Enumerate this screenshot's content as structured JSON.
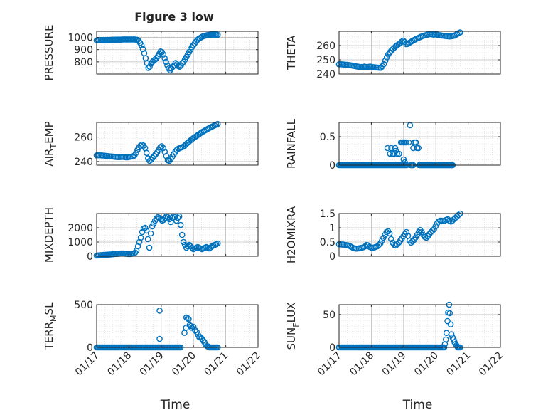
{
  "figure": {
    "title": "Figure 3 low"
  },
  "colors": {
    "marker": "#0072BD",
    "axis": "#262626",
    "grid": "#d0d0d0",
    "background": "#ffffff"
  },
  "chart_data": [
    {
      "type": "scatter",
      "title": "Figure 3 low",
      "ylabel": "PRESSURE",
      "xlabel": "",
      "xlim": [
        0,
        5
      ],
      "ylim": [
        700,
        1050
      ],
      "yticks": [
        800,
        900,
        1000
      ],
      "ytick_labels": [
        "800",
        "900",
        "1000"
      ],
      "xtick_labels": [
        "01/17",
        "01/18",
        "01/19",
        "01/20",
        "01/21",
        "01/22"
      ],
      "grid": true,
      "minor_grid": true,
      "y": [
        975,
        977,
        978,
        978,
        978,
        979,
        979,
        979,
        980,
        980,
        980,
        981,
        981,
        981,
        981,
        982,
        982,
        982,
        982,
        983,
        983,
        983,
        983,
        983,
        983,
        983,
        983,
        983,
        983,
        982,
        980,
        970,
        955,
        935,
        905,
        870,
        830,
        790,
        750,
        760,
        785,
        800,
        810,
        820,
        830,
        845,
        865,
        885,
        880,
        860,
        830,
        800,
        770,
        745,
        730,
        745,
        760,
        770,
        790,
        780,
        765,
        760,
        770,
        790,
        800,
        820,
        840,
        860,
        880,
        900,
        920,
        935,
        950,
        965,
        978,
        988,
        995,
        1002,
        1008,
        1012,
        1015,
        1018,
        1020,
        1021,
        1022,
        1023,
        1023,
        1023,
        1022,
        1021
      ]
    },
    {
      "type": "scatter",
      "ylabel": "THETA",
      "xlabel": "",
      "xlim": [
        0,
        5
      ],
      "ylim": [
        240,
        270
      ],
      "yticks": [
        240,
        250,
        260
      ],
      "ytick_labels": [
        "240",
        "250",
        "260"
      ],
      "xtick_labels": [
        "01/17",
        "01/18",
        "01/19",
        "01/20",
        "01/21",
        "01/22"
      ],
      "grid": true,
      "minor_grid": true,
      "y": [
        246.8,
        246.9,
        246.8,
        246.7,
        246.6,
        246.5,
        246.4,
        246.3,
        246.1,
        245.9,
        245.7,
        245.5,
        245.3,
        245.1,
        245.0,
        244.9,
        245.0,
        245.2,
        245.0,
        244.9,
        245.1,
        245.2,
        245.0,
        244.8,
        244.7,
        244.6,
        244.5,
        244.4,
        244.4,
        245.5,
        247.0,
        249.5,
        251.8,
        253.8,
        255.2,
        256.5,
        257.5,
        258.5,
        259.5,
        260.3,
        261.0,
        261.8,
        262.8,
        263.5,
        262.5,
        261.0,
        261.2,
        261.9,
        262.5,
        263.2,
        263.8,
        264.3,
        264.9,
        265.3,
        265.8,
        266.3,
        266.7,
        267.0,
        267.3,
        267.6,
        267.9,
        268.0,
        267.9,
        267.7,
        267.8,
        268.0,
        267.6,
        267.3,
        267.2,
        267.0,
        266.9,
        266.7,
        266.6,
        266.5,
        266.4,
        266.5,
        266.7,
        266.9,
        267.4,
        268.1,
        268.7,
        269.2
      ]
    },
    {
      "type": "scatter",
      "ylabel": "AIR_TEMP",
      "xlabel": "",
      "xlim": [
        0,
        5
      ],
      "ylim": [
        237,
        272
      ],
      "yticks": [
        240,
        260
      ],
      "ytick_labels": [
        "240",
        "260"
      ],
      "xtick_labels": [
        "01/17",
        "01/18",
        "01/19",
        "01/20",
        "01/21",
        "01/22"
      ],
      "grid": true,
      "minor_grid": true,
      "y": [
        245.0,
        245.1,
        245.1,
        245.0,
        244.9,
        244.8,
        244.6,
        244.5,
        244.3,
        244.2,
        244.1,
        244.0,
        243.8,
        243.7,
        243.6,
        243.6,
        243.7,
        243.8,
        243.7,
        243.5,
        243.4,
        243.6,
        243.8,
        244.0,
        244.2,
        245.0,
        247.0,
        249.5,
        251.5,
        253.0,
        253.8,
        253.0,
        251.0,
        247.0,
        242.5,
        240.5,
        241.5,
        243.0,
        244.5,
        246.0,
        247.5,
        249.5,
        251.5,
        252.5,
        251.0,
        248.0,
        244.5,
        241.0,
        240.5,
        242.0,
        244.0,
        246.0,
        248.0,
        249.5,
        250.5,
        251.0,
        251.5,
        252.0,
        252.8,
        254.0,
        255.2,
        256.2,
        257.3,
        258.3,
        259.2,
        260.1,
        260.9,
        261.8,
        262.6,
        263.5,
        264.3,
        265.0,
        265.7,
        266.4,
        267.1,
        267.8,
        268.4,
        269.0,
        269.6,
        270.2,
        270.7
      ]
    },
    {
      "type": "scatter",
      "ylabel": "RAINFALL",
      "xlabel": "",
      "xlim": [
        0,
        5
      ],
      "ylim": [
        0,
        0.75
      ],
      "yticks": [
        0,
        0.5
      ],
      "ytick_labels": [
        "0",
        "0.5"
      ],
      "xtick_labels": [
        "01/17",
        "01/18",
        "01/19",
        "01/20",
        "01/21",
        "01/22"
      ],
      "grid": true,
      "minor_grid": true,
      "points": [
        [
          1.5,
          0.3
        ],
        [
          1.58,
          0.2
        ],
        [
          1.62,
          0.3
        ],
        [
          1.66,
          0.2
        ],
        [
          1.7,
          0.2
        ],
        [
          1.74,
          0.3
        ],
        [
          1.76,
          0.25
        ],
        [
          1.8,
          0.2
        ],
        [
          1.86,
          0.2
        ],
        [
          1.92,
          0.4
        ],
        [
          1.96,
          0.4
        ],
        [
          2.0,
          0.4
        ],
        [
          2.04,
          0.4
        ],
        [
          2.08,
          0.4
        ],
        [
          2.0,
          0.1
        ],
        [
          2.04,
          0.05
        ],
        [
          2.16,
          0.4
        ],
        [
          2.2,
          0.7
        ],
        [
          2.3,
          0.3
        ],
        [
          2.34,
          0.4
        ],
        [
          2.38,
          0.4
        ],
        [
          2.42,
          0.3
        ],
        [
          2.46,
          0.3
        ]
      ],
      "zero_ranges": [
        [
          0.0,
          1.48,
          45
        ],
        [
          1.52,
          2.1,
          18
        ],
        [
          2.22,
          2.3,
          4
        ],
        [
          2.48,
          3.52,
          40
        ]
      ]
    },
    {
      "type": "scatter",
      "ylabel": "MIXDEPTH",
      "xlabel": "",
      "xlim": [
        0,
        5
      ],
      "ylim": [
        0,
        3000
      ],
      "yticks": [
        0,
        1000,
        2000
      ],
      "ytick_labels": [
        "0",
        "1000",
        "2000"
      ],
      "xtick_labels": [
        "01/17",
        "01/18",
        "01/19",
        "01/20",
        "01/21",
        "01/22"
      ],
      "grid": true,
      "minor_grid": true,
      "y": [
        50,
        60,
        70,
        80,
        90,
        95,
        100,
        110,
        115,
        120,
        130,
        140,
        150,
        160,
        165,
        170,
        180,
        190,
        200,
        200,
        180,
        170,
        160,
        150,
        160,
        180,
        200,
        260,
        400,
        700,
        1000,
        1300,
        1700,
        1950,
        2000,
        1800,
        1200,
        600,
        1600,
        2100,
        2300,
        2500,
        2650,
        2750,
        2700,
        2600,
        2500,
        2550,
        2700,
        2800,
        2750,
        2600,
        2400,
        2700,
        2800,
        2750,
        2500,
        2700,
        2800,
        2200,
        1500,
        1000,
        800,
        600,
        700,
        800,
        700,
        600,
        500,
        550,
        600,
        650,
        600,
        550,
        500,
        560,
        600,
        650,
        600,
        550,
        620,
        700,
        750,
        800,
        850,
        900
      ]
    },
    {
      "type": "scatter",
      "ylabel": "H2OMIXRA",
      "xlabel": "",
      "xlim": [
        0,
        5
      ],
      "ylim": [
        0,
        1.5
      ],
      "yticks": [
        0,
        0.5,
        1,
        1.5
      ],
      "ytick_labels": [
        "0",
        "0.5",
        "1",
        "1.5"
      ],
      "xtick_labels": [
        "01/17",
        "01/18",
        "01/19",
        "01/20",
        "01/21",
        "01/22"
      ],
      "grid": true,
      "minor_grid": true,
      "y": [
        0.42,
        0.42,
        0.41,
        0.41,
        0.4,
        0.39,
        0.38,
        0.36,
        0.33,
        0.3,
        0.28,
        0.27,
        0.27,
        0.28,
        0.29,
        0.3,
        0.32,
        0.35,
        0.4,
        0.38,
        0.33,
        0.3,
        0.3,
        0.31,
        0.33,
        0.35,
        0.4,
        0.45,
        0.55,
        0.65,
        0.75,
        0.85,
        0.88,
        0.8,
        0.6,
        0.48,
        0.4,
        0.38,
        0.42,
        0.48,
        0.55,
        0.62,
        0.7,
        0.78,
        0.85,
        0.72,
        0.55,
        0.48,
        0.52,
        0.58,
        0.66,
        0.75,
        0.85,
        0.92,
        0.85,
        0.75,
        0.68,
        0.65,
        0.7,
        0.78,
        0.85,
        0.9,
        0.95,
        1.05,
        1.15,
        1.22,
        1.25,
        1.25,
        1.24,
        1.25,
        1.28,
        1.3,
        1.25,
        1.22,
        1.25,
        1.3,
        1.35,
        1.4,
        1.45,
        1.5
      ]
    },
    {
      "type": "scatter",
      "ylabel": "TERR_MSL",
      "xlabel": "Time",
      "xlim": [
        0,
        5
      ],
      "ylim": [
        0,
        500
      ],
      "yticks": [
        0,
        500
      ],
      "ytick_labels": [
        "0",
        "500"
      ],
      "xtick_labels": [
        "01/17",
        "01/18",
        "01/19",
        "01/20",
        "01/21",
        "01/22"
      ],
      "grid": true,
      "minor_grid": true,
      "points": [
        [
          1.95,
          430
        ],
        [
          1.95,
          100
        ],
        [
          2.72,
          170
        ],
        [
          2.77,
          230
        ],
        [
          2.78,
          350
        ],
        [
          2.82,
          340
        ],
        [
          2.85,
          330
        ],
        [
          2.88,
          260
        ],
        [
          2.92,
          250
        ],
        [
          2.95,
          230
        ],
        [
          3.0,
          240
        ],
        [
          3.05,
          200
        ],
        [
          3.1,
          180
        ],
        [
          3.14,
          150
        ],
        [
          3.18,
          120
        ],
        [
          3.22,
          120
        ],
        [
          3.26,
          100
        ],
        [
          3.3,
          80
        ],
        [
          3.34,
          60
        ],
        [
          3.38,
          30
        ],
        [
          3.42,
          15
        ],
        [
          3.46,
          10
        ]
      ],
      "zero_ranges": [
        [
          0.0,
          2.6,
          70
        ],
        [
          3.48,
          3.75,
          8
        ]
      ]
    },
    {
      "type": "scatter",
      "ylabel": "SUN_FLUX",
      "xlabel": "Time",
      "xlim": [
        0,
        5
      ],
      "ylim": [
        0,
        65
      ],
      "yticks": [
        0,
        50
      ],
      "ytick_labels": [
        "0",
        "50"
      ],
      "xtick_labels": [
        "01/17",
        "01/18",
        "01/19",
        "01/20",
        "01/21",
        "01/22"
      ],
      "grid": true,
      "minor_grid": true,
      "points": [
        [
          3.28,
          5
        ],
        [
          3.31,
          12
        ],
        [
          3.33,
          22
        ],
        [
          3.36,
          40
        ],
        [
          3.38,
          53
        ],
        [
          3.41,
          65
        ],
        [
          3.43,
          52
        ],
        [
          3.46,
          35
        ],
        [
          3.48,
          20
        ],
        [
          3.52,
          15
        ],
        [
          3.55,
          12
        ],
        [
          3.58,
          8
        ],
        [
          3.61,
          5
        ],
        [
          3.64,
          3
        ],
        [
          3.67,
          1
        ]
      ],
      "zero_ranges": [
        [
          0.0,
          3.26,
          80
        ],
        [
          3.68,
          3.75,
          3
        ]
      ]
    }
  ]
}
